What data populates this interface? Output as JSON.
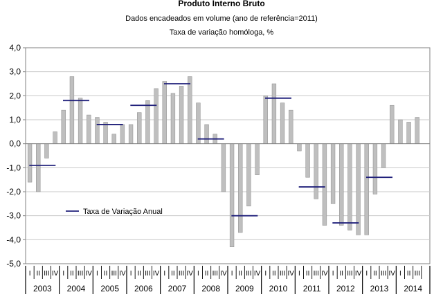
{
  "chart_data": {
    "type": "bar",
    "title": "Produto Interno Bruto",
    "subtitle_1": "Dados encadeados em volume (ano de referência=2011)",
    "subtitle_2": "Taxa de variação homóloga, %",
    "ylim": [
      -5.0,
      4.0
    ],
    "y_ticks": [
      "4,0",
      "3,0",
      "2,0",
      "1,0",
      "0,0",
      "-1,0",
      "-2,0",
      "-3,0",
      "-4,0",
      "-5,0"
    ],
    "grid": true,
    "quarter_labels": [
      "I",
      "II",
      "III",
      "IV"
    ],
    "years": [
      "2003",
      "2004",
      "2005",
      "2006",
      "2007",
      "2008",
      "2009",
      "2010",
      "2011",
      "2012",
      "2013",
      "2014"
    ],
    "series": [
      {
        "name": "Taxa de variação homóloga, %",
        "color": "#bfbfbf",
        "values": [
          -1.6,
          -2.0,
          -0.6,
          0.5,
          1.4,
          2.8,
          1.9,
          1.2,
          1.1,
          0.9,
          0.4,
          0.8,
          0.8,
          1.3,
          1.8,
          2.3,
          2.6,
          2.1,
          2.4,
          2.8,
          1.7,
          0.8,
          0.4,
          -2.0,
          -4.3,
          -3.7,
          -2.6,
          -1.3,
          2.0,
          2.5,
          1.7,
          1.4,
          -0.3,
          -1.4,
          -2.3,
          -3.4,
          -2.5,
          -3.4,
          -3.6,
          -3.8,
          -3.8,
          -2.1,
          -1.0,
          1.6,
          1.0,
          0.9,
          1.1
        ]
      },
      {
        "name": "Taxa de Variação Anual",
        "color": "#1f1f7a",
        "values": [
          -0.9,
          1.8,
          0.8,
          1.6,
          2.5,
          0.2,
          -3.0,
          1.9,
          -1.8,
          -3.3,
          -1.4
        ]
      }
    ],
    "legend_label": "Taxa de Variação Anual",
    "legend_position": "left-bottom"
  }
}
